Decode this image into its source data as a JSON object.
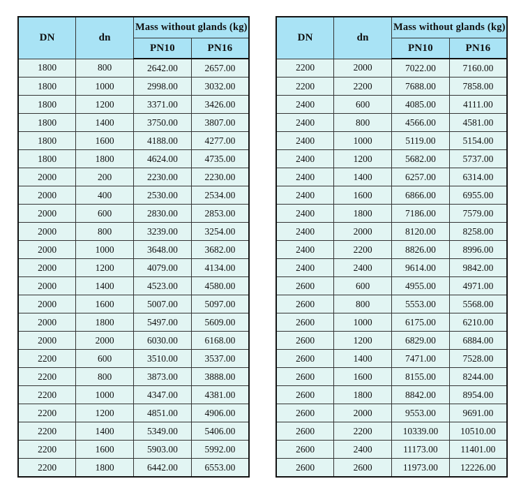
{
  "colors": {
    "header_bg": "#a9e3f5",
    "cell_bg": "#e2f5f3",
    "border_inner": "#333333",
    "border_outer": "#121212"
  },
  "tables": [
    {
      "headers": {
        "dn_upper": "DN",
        "dn_lower": "dn",
        "mass_group": "Mass without glands (kg)",
        "pn10": "PN10",
        "pn16": "PN16"
      },
      "rows": [
        [
          "1800",
          "800",
          "2642.00",
          "2657.00"
        ],
        [
          "1800",
          "1000",
          "2998.00",
          "3032.00"
        ],
        [
          "1800",
          "1200",
          "3371.00",
          "3426.00"
        ],
        [
          "1800",
          "1400",
          "3750.00",
          "3807.00"
        ],
        [
          "1800",
          "1600",
          "4188.00",
          "4277.00"
        ],
        [
          "1800",
          "1800",
          "4624.00",
          "4735.00"
        ],
        [
          "2000",
          "200",
          "2230.00",
          "2230.00"
        ],
        [
          "2000",
          "400",
          "2530.00",
          "2534.00"
        ],
        [
          "2000",
          "600",
          "2830.00",
          "2853.00"
        ],
        [
          "2000",
          "800",
          "3239.00",
          "3254.00"
        ],
        [
          "2000",
          "1000",
          "3648.00",
          "3682.00"
        ],
        [
          "2000",
          "1200",
          "4079.00",
          "4134.00"
        ],
        [
          "2000",
          "1400",
          "4523.00",
          "4580.00"
        ],
        [
          "2000",
          "1600",
          "5007.00",
          "5097.00"
        ],
        [
          "2000",
          "1800",
          "5497.00",
          "5609.00"
        ],
        [
          "2000",
          "2000",
          "6030.00",
          "6168.00"
        ],
        [
          "2200",
          "600",
          "3510.00",
          "3537.00"
        ],
        [
          "2200",
          "800",
          "3873.00",
          "3888.00"
        ],
        [
          "2200",
          "1000",
          "4347.00",
          "4381.00"
        ],
        [
          "2200",
          "1200",
          "4851.00",
          "4906.00"
        ],
        [
          "2200",
          "1400",
          "5349.00",
          "5406.00"
        ],
        [
          "2200",
          "1600",
          "5903.00",
          "5992.00"
        ],
        [
          "2200",
          "1800",
          "6442.00",
          "6553.00"
        ]
      ]
    },
    {
      "headers": {
        "dn_upper": "DN",
        "dn_lower": "dn",
        "mass_group": "Mass without glands (kg)",
        "pn10": "PN10",
        "pn16": "PN16"
      },
      "rows": [
        [
          "2200",
          "2000",
          "7022.00",
          "7160.00"
        ],
        [
          "2200",
          "2200",
          "7688.00",
          "7858.00"
        ],
        [
          "2400",
          "600",
          "4085.00",
          "4111.00"
        ],
        [
          "2400",
          "800",
          "4566.00",
          "4581.00"
        ],
        [
          "2400",
          "1000",
          "5119.00",
          "5154.00"
        ],
        [
          "2400",
          "1200",
          "5682.00",
          "5737.00"
        ],
        [
          "2400",
          "1400",
          "6257.00",
          "6314.00"
        ],
        [
          "2400",
          "1600",
          "6866.00",
          "6955.00"
        ],
        [
          "2400",
          "1800",
          "7186.00",
          "7579.00"
        ],
        [
          "2400",
          "2000",
          "8120.00",
          "8258.00"
        ],
        [
          "2400",
          "2200",
          "8826.00",
          "8996.00"
        ],
        [
          "2400",
          "2400",
          "9614.00",
          "9842.00"
        ],
        [
          "2600",
          "600",
          "4955.00",
          "4971.00"
        ],
        [
          "2600",
          "800",
          "5553.00",
          "5568.00"
        ],
        [
          "2600",
          "1000",
          "6175.00",
          "6210.00"
        ],
        [
          "2600",
          "1200",
          "6829.00",
          "6884.00"
        ],
        [
          "2600",
          "1400",
          "7471.00",
          "7528.00"
        ],
        [
          "2600",
          "1600",
          "8155.00",
          "8244.00"
        ],
        [
          "2600",
          "1800",
          "8842.00",
          "8954.00"
        ],
        [
          "2600",
          "2000",
          "9553.00",
          "9691.00"
        ],
        [
          "2600",
          "2200",
          "10339.00",
          "10510.00"
        ],
        [
          "2600",
          "2400",
          "11173.00",
          "11401.00"
        ],
        [
          "2600",
          "2600",
          "11973.00",
          "12226.00"
        ]
      ]
    }
  ]
}
